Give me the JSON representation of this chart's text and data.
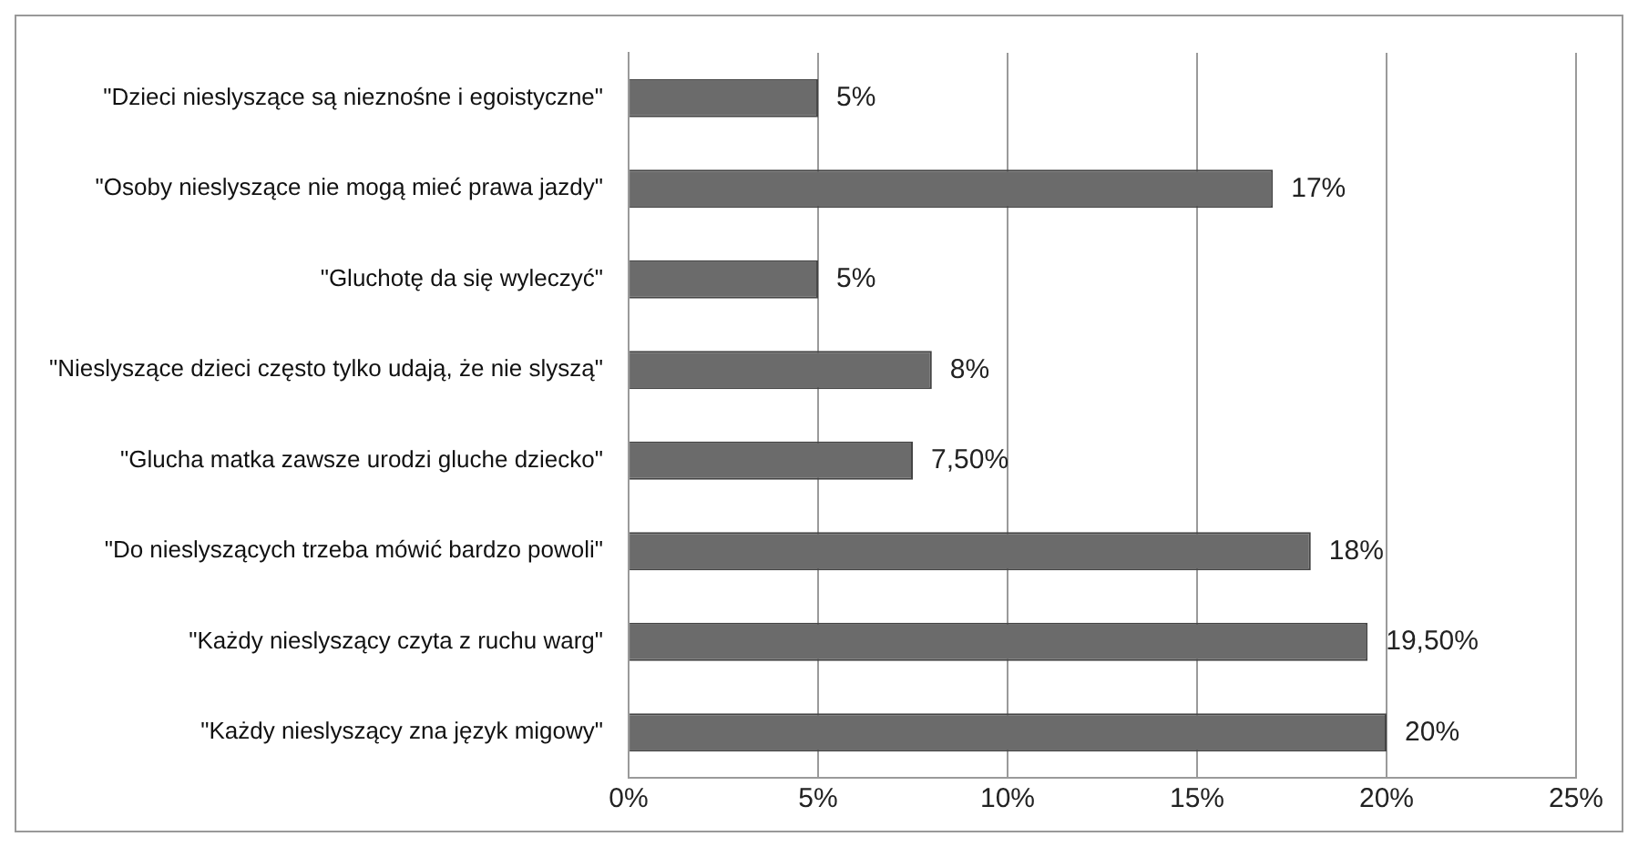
{
  "chart_data": {
    "type": "bar",
    "orientation": "horizontal",
    "categories": [
      "\"Dzieci nieslyszące są nieznośne i egoistyczne\"",
      "\"Osoby nieslyszące nie mogą mieć prawa jazdy\"",
      "\"Gluchotę da się wyleczyć\"",
      "\"Nieslyszące dzieci często tylko udają, że nie slyszą\"",
      "\"Glucha matka zawsze urodzi gluche dziecko\"",
      "\"Do nieslyszących trzeba mówić bardzo powoli\"",
      "\"Każdy nieslyszący czyta z ruchu warg\"",
      "\"Każdy nieslyszący zna język migowy\""
    ],
    "values": [
      5,
      17,
      5,
      8,
      7.5,
      18,
      19.5,
      20
    ],
    "value_labels": [
      "5%",
      "17%",
      "5%",
      "8%",
      "7,50%",
      "18%",
      "19,50%",
      "20%"
    ],
    "color": "#6b6b6b",
    "xlim": [
      0,
      25
    ],
    "xticks": [
      {
        "value": 0,
        "label": "0%"
      },
      {
        "value": 5,
        "label": "5%"
      },
      {
        "value": 10,
        "label": "10%"
      },
      {
        "value": 15,
        "label": "15%"
      },
      {
        "value": 20,
        "label": "20%"
      },
      {
        "value": 25,
        "label": "25%"
      }
    ],
    "grid": "x"
  }
}
